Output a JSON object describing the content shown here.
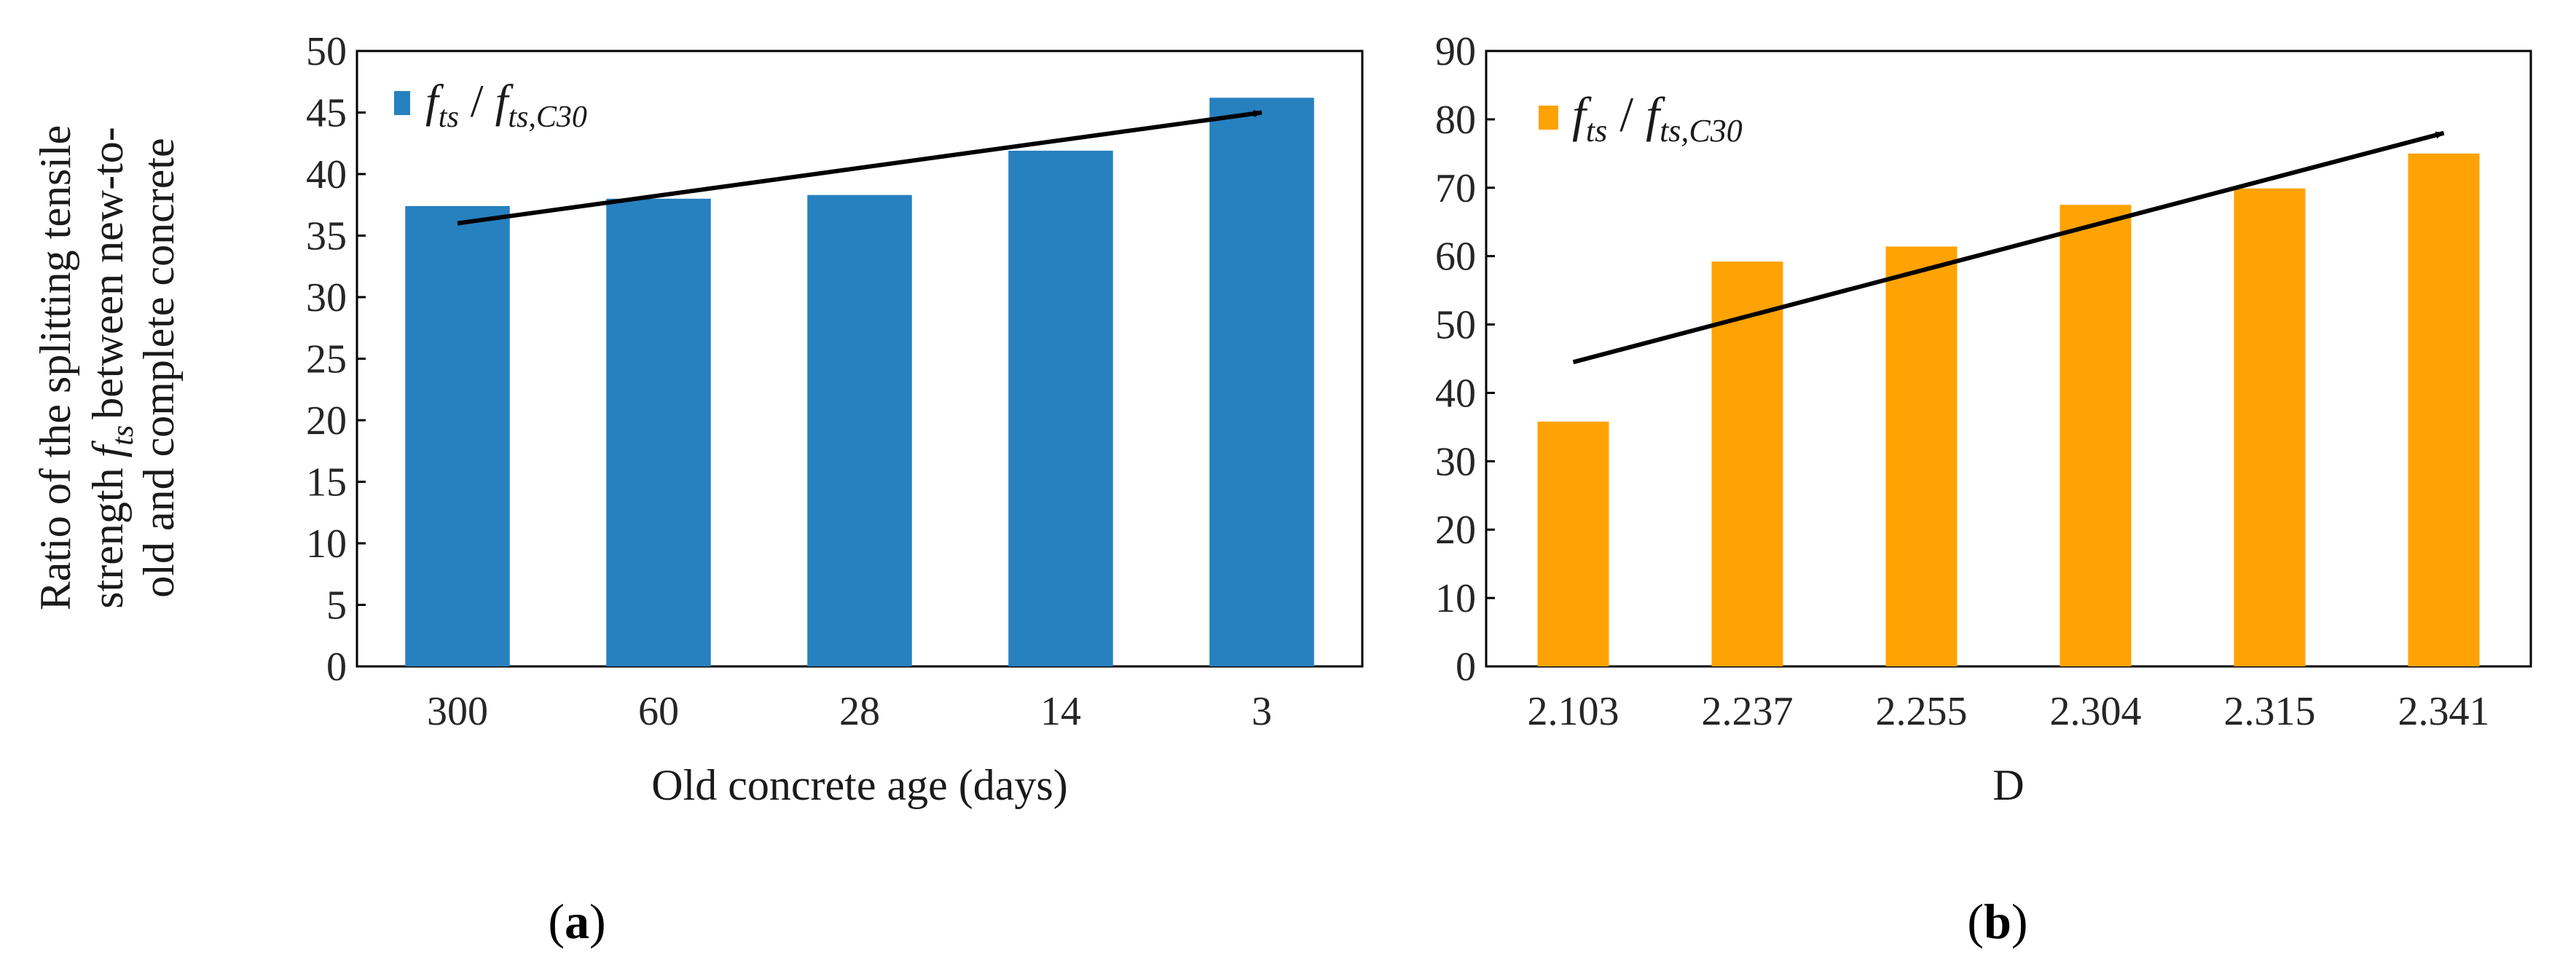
{
  "figure": {
    "ylabel_lines": [
      "Ratio of the splitting tensile",
      "strength",
      "between new-to-",
      "old and complete concrete"
    ],
    "ylabel_symbol": {
      "main": "f",
      "sub": "ts"
    }
  },
  "chart_data": [
    {
      "id": "a",
      "type": "bar",
      "title": "",
      "xlabel": "Old concrete  age (days)",
      "ylabel": "Ratio of the splitting tensile strength f_ts between new-to-old and complete concrete",
      "categories": [
        "300",
        "60",
        "28",
        "14",
        "3"
      ],
      "series": [
        {
          "name": "f_ts / f_ts,C30",
          "values": [
            37.4,
            38.0,
            38.3,
            41.9,
            46.2
          ],
          "color": "#2781bf"
        }
      ],
      "ylim": [
        0,
        50
      ],
      "yticks": [
        0,
        5,
        10,
        15,
        20,
        25,
        30,
        35,
        40,
        45,
        50
      ],
      "grid": false,
      "legend": {
        "placement": "top-left",
        "main": "f",
        "sub1": "ts",
        "sep": " / ",
        "sub2": "ts,C30"
      },
      "trend_arrow": {
        "from": [
          0,
          36.0
        ],
        "to": [
          4,
          45.0
        ]
      },
      "panel_label": "a"
    },
    {
      "id": "b",
      "type": "bar",
      "title": "",
      "xlabel": "D",
      "ylabel": "",
      "categories": [
        "2.103",
        "2.237",
        "2.255",
        "2.304",
        "2.315",
        "2.341"
      ],
      "series": [
        {
          "name": "f_ts / f_ts,C30",
          "values": [
            35.8,
            59.2,
            61.4,
            67.5,
            69.9,
            75.0
          ],
          "color": "#ffa203"
        }
      ],
      "ylim": [
        0,
        90
      ],
      "yticks": [
        0,
        10,
        20,
        30,
        40,
        50,
        60,
        70,
        80,
        90
      ],
      "grid": false,
      "legend": {
        "placement": "top-left",
        "main": "f",
        "sub1": "ts",
        "sep": " / ",
        "sub2": "ts,C30"
      },
      "trend_arrow": {
        "from": [
          0,
          44.5
        ],
        "to": [
          5,
          78.0
        ]
      },
      "panel_label": "b"
    }
  ]
}
